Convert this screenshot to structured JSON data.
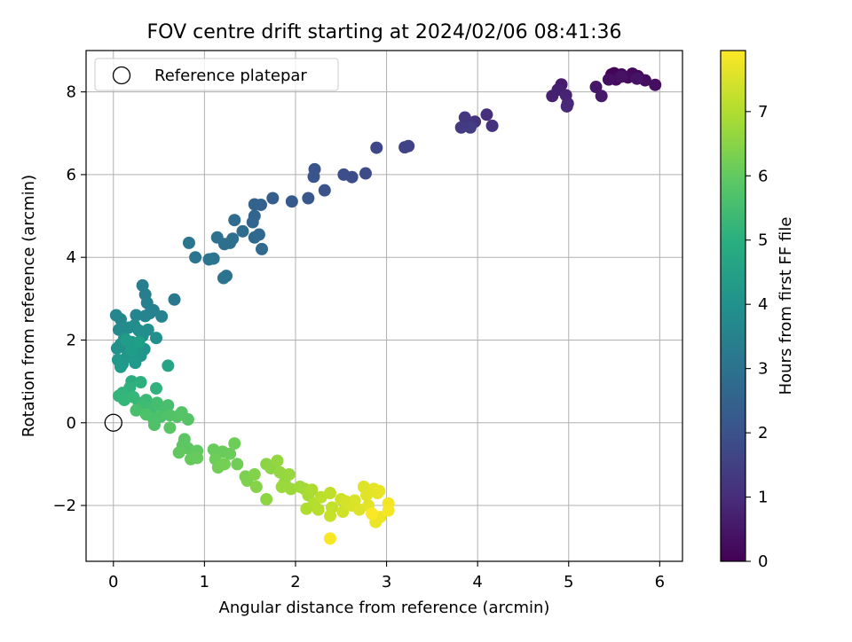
{
  "chart_data": {
    "type": "scatter",
    "title": "FOV centre drift starting at 2024/02/06 08:41:36",
    "xlabel": "Angular distance from reference (arcmin)",
    "ylabel": "Rotation from reference (arcmin)",
    "xlim": [
      -0.3,
      6.25
    ],
    "ylim": [
      -3.35,
      9.0
    ],
    "x_ticks": [
      0,
      1,
      2,
      3,
      4,
      5,
      6
    ],
    "y_ticks": [
      -2,
      0,
      2,
      4,
      6,
      8
    ],
    "x_tick_labels": [
      "0",
      "1",
      "2",
      "3",
      "4",
      "5",
      "6"
    ],
    "y_tick_labels": [
      "−2",
      "0",
      "2",
      "4",
      "6",
      "8"
    ],
    "grid": true,
    "legend": {
      "placement": "upper-left",
      "entries": [
        {
          "label": "Reference platepar",
          "marker": "open-circle"
        }
      ]
    },
    "reference_point": {
      "x": 0,
      "y": 0
    },
    "colorbar": {
      "label": "Hours from first FF file",
      "colormap": "viridis",
      "range": [
        0,
        7.95
      ],
      "ticks": [
        0,
        1,
        2,
        3,
        4,
        5,
        6,
        7
      ],
      "tick_labels": [
        "0",
        "1",
        "2",
        "3",
        "4",
        "5",
        "6",
        "7"
      ]
    },
    "points": [
      {
        "x": 5.47,
        "y": 8.42,
        "hours": 0.05
      },
      {
        "x": 5.5,
        "y": 8.45,
        "hours": 0.08
      },
      {
        "x": 5.58,
        "y": 8.42,
        "hours": 0.12
      },
      {
        "x": 5.7,
        "y": 8.44,
        "hours": 0.15
      },
      {
        "x": 5.76,
        "y": 8.38,
        "hours": 0.18
      },
      {
        "x": 5.65,
        "y": 8.35,
        "hours": 0.22
      },
      {
        "x": 5.52,
        "y": 8.3,
        "hours": 0.25
      },
      {
        "x": 5.84,
        "y": 8.28,
        "hours": 0.28
      },
      {
        "x": 5.95,
        "y": 8.17,
        "hours": 0.32
      },
      {
        "x": 5.44,
        "y": 8.3,
        "hours": 0.35
      },
      {
        "x": 5.58,
        "y": 8.37,
        "hours": 0.38
      },
      {
        "x": 5.75,
        "y": 8.32,
        "hours": 0.42
      },
      {
        "x": 5.3,
        "y": 8.12,
        "hours": 0.5
      },
      {
        "x": 5.36,
        "y": 7.9,
        "hours": 0.55
      },
      {
        "x": 4.92,
        "y": 8.18,
        "hours": 0.62
      },
      {
        "x": 4.88,
        "y": 8.05,
        "hours": 0.68
      },
      {
        "x": 4.82,
        "y": 7.9,
        "hours": 0.72
      },
      {
        "x": 4.97,
        "y": 7.92,
        "hours": 0.8
      },
      {
        "x": 4.99,
        "y": 7.72,
        "hours": 0.85
      },
      {
        "x": 4.98,
        "y": 7.65,
        "hours": 0.9
      },
      {
        "x": 4.1,
        "y": 7.45,
        "hours": 1.1
      },
      {
        "x": 4.16,
        "y": 7.18,
        "hours": 1.15
      },
      {
        "x": 3.97,
        "y": 7.28,
        "hours": 1.2
      },
      {
        "x": 3.86,
        "y": 7.38,
        "hours": 1.25
      },
      {
        "x": 3.88,
        "y": 7.22,
        "hours": 1.3
      },
      {
        "x": 3.82,
        "y": 7.14,
        "hours": 1.35
      },
      {
        "x": 3.92,
        "y": 7.14,
        "hours": 1.4
      },
      {
        "x": 3.24,
        "y": 6.69,
        "hours": 1.55
      },
      {
        "x": 3.2,
        "y": 6.66,
        "hours": 1.6
      },
      {
        "x": 2.89,
        "y": 6.65,
        "hours": 1.7
      },
      {
        "x": 2.77,
        "y": 6.03,
        "hours": 1.8
      },
      {
        "x": 2.62,
        "y": 5.94,
        "hours": 1.85
      },
      {
        "x": 2.53,
        "y": 6.0,
        "hours": 1.9
      },
      {
        "x": 2.32,
        "y": 5.62,
        "hours": 2.0
      },
      {
        "x": 2.21,
        "y": 6.13,
        "hours": 2.05
      },
      {
        "x": 2.2,
        "y": 5.95,
        "hours": 2.1
      },
      {
        "x": 2.14,
        "y": 5.43,
        "hours": 2.15
      },
      {
        "x": 1.96,
        "y": 5.35,
        "hours": 2.25
      },
      {
        "x": 1.75,
        "y": 5.43,
        "hours": 2.35
      },
      {
        "x": 1.62,
        "y": 5.27,
        "hours": 2.45
      },
      {
        "x": 1.55,
        "y": 5.28,
        "hours": 2.5
      },
      {
        "x": 1.55,
        "y": 5.0,
        "hours": 2.55
      },
      {
        "x": 1.53,
        "y": 4.85,
        "hours": 2.6
      },
      {
        "x": 1.6,
        "y": 4.55,
        "hours": 2.65
      },
      {
        "x": 1.55,
        "y": 4.48,
        "hours": 2.7
      },
      {
        "x": 1.63,
        "y": 4.2,
        "hours": 2.72
      },
      {
        "x": 1.42,
        "y": 4.63,
        "hours": 2.78
      },
      {
        "x": 1.33,
        "y": 4.9,
        "hours": 2.8
      },
      {
        "x": 1.31,
        "y": 4.45,
        "hours": 2.85
      },
      {
        "x": 1.28,
        "y": 4.35,
        "hours": 2.88
      },
      {
        "x": 1.22,
        "y": 4.32,
        "hours": 2.9
      },
      {
        "x": 1.14,
        "y": 4.48,
        "hours": 2.95
      },
      {
        "x": 1.24,
        "y": 3.55,
        "hours": 3.0
      },
      {
        "x": 1.21,
        "y": 3.5,
        "hours": 3.02
      },
      {
        "x": 1.1,
        "y": 3.97,
        "hours": 3.05
      },
      {
        "x": 1.05,
        "y": 3.95,
        "hours": 3.08
      },
      {
        "x": 0.9,
        "y": 4.0,
        "hours": 3.1
      },
      {
        "x": 0.83,
        "y": 4.35,
        "hours": 3.12
      },
      {
        "x": 0.67,
        "y": 2.98,
        "hours": 3.2
      },
      {
        "x": 0.32,
        "y": 3.32,
        "hours": 3.35
      },
      {
        "x": 0.35,
        "y": 3.1,
        "hours": 3.4
      },
      {
        "x": 0.37,
        "y": 2.9,
        "hours": 3.45
      },
      {
        "x": 0.44,
        "y": 2.72,
        "hours": 3.48
      },
      {
        "x": 0.4,
        "y": 2.65,
        "hours": 3.52
      },
      {
        "x": 0.53,
        "y": 2.57,
        "hours": 3.55
      },
      {
        "x": 0.35,
        "y": 2.58,
        "hours": 3.6
      },
      {
        "x": 0.25,
        "y": 2.6,
        "hours": 3.62
      },
      {
        "x": 0.03,
        "y": 2.6,
        "hours": 3.7
      },
      {
        "x": 0.08,
        "y": 2.5,
        "hours": 3.72
      },
      {
        "x": 0.06,
        "y": 2.25,
        "hours": 3.78
      },
      {
        "x": 0.17,
        "y": 2.3,
        "hours": 3.82
      },
      {
        "x": 0.23,
        "y": 2.35,
        "hours": 3.85
      },
      {
        "x": 0.28,
        "y": 2.23,
        "hours": 3.88
      },
      {
        "x": 0.38,
        "y": 2.25,
        "hours": 3.9
      },
      {
        "x": 0.32,
        "y": 2.1,
        "hours": 3.93
      },
      {
        "x": 0.47,
        "y": 2.05,
        "hours": 3.95
      },
      {
        "x": 0.12,
        "y": 2.05,
        "hours": 3.98
      },
      {
        "x": 0.08,
        "y": 1.9,
        "hours": 4.0
      },
      {
        "x": 0.04,
        "y": 1.8,
        "hours": 4.02
      },
      {
        "x": 0.14,
        "y": 1.8,
        "hours": 4.05
      },
      {
        "x": 0.2,
        "y": 1.95,
        "hours": 4.08
      },
      {
        "x": 0.26,
        "y": 1.88,
        "hours": 4.1
      },
      {
        "x": 0.34,
        "y": 1.78,
        "hours": 4.12
      },
      {
        "x": 0.3,
        "y": 1.62,
        "hours": 4.15
      },
      {
        "x": 0.22,
        "y": 1.55,
        "hours": 4.18
      },
      {
        "x": 0.15,
        "y": 1.6,
        "hours": 4.2
      },
      {
        "x": 0.05,
        "y": 1.52,
        "hours": 4.22
      },
      {
        "x": 0.1,
        "y": 1.42,
        "hours": 4.25
      },
      {
        "x": 0.08,
        "y": 1.35,
        "hours": 4.28
      },
      {
        "x": 0.24,
        "y": 1.45,
        "hours": 4.3
      },
      {
        "x": 0.14,
        "y": 2.0,
        "hours": 4.35
      },
      {
        "x": 0.2,
        "y": 1.75,
        "hours": 4.4
      },
      {
        "x": 0.28,
        "y": 1.95,
        "hours": 4.45
      },
      {
        "x": 0.6,
        "y": 1.38,
        "hours": 4.65
      },
      {
        "x": 0.2,
        "y": 1.0,
        "hours": 4.9
      },
      {
        "x": 0.3,
        "y": 0.98,
        "hours": 5.0
      },
      {
        "x": 0.18,
        "y": 0.85,
        "hours": 5.05
      },
      {
        "x": 0.47,
        "y": 0.83,
        "hours": 5.1
      },
      {
        "x": 0.1,
        "y": 0.72,
        "hours": 5.15
      },
      {
        "x": 0.06,
        "y": 0.65,
        "hours": 5.2
      },
      {
        "x": 0.12,
        "y": 0.55,
        "hours": 5.25
      },
      {
        "x": 0.22,
        "y": 0.62,
        "hours": 5.3
      },
      {
        "x": 0.28,
        "y": 0.48,
        "hours": 5.35
      },
      {
        "x": 0.36,
        "y": 0.55,
        "hours": 5.4
      },
      {
        "x": 0.32,
        "y": 0.4,
        "hours": 5.45
      },
      {
        "x": 0.42,
        "y": 0.35,
        "hours": 5.5
      },
      {
        "x": 0.48,
        "y": 0.48,
        "hours": 5.55
      },
      {
        "x": 0.55,
        "y": 0.3,
        "hours": 5.58
      },
      {
        "x": 0.6,
        "y": 0.42,
        "hours": 5.6
      },
      {
        "x": 0.25,
        "y": 0.3,
        "hours": 5.62
      },
      {
        "x": 0.44,
        "y": 0.1,
        "hours": 5.65
      },
      {
        "x": 0.52,
        "y": 0.15,
        "hours": 5.68
      },
      {
        "x": 0.36,
        "y": 0.2,
        "hours": 5.7
      },
      {
        "x": 0.45,
        "y": -0.05,
        "hours": 5.72
      },
      {
        "x": 0.62,
        "y": 0.18,
        "hours": 5.75
      },
      {
        "x": 0.7,
        "y": 0.15,
        "hours": 5.78
      },
      {
        "x": 0.75,
        "y": 0.25,
        "hours": 5.8
      },
      {
        "x": 0.82,
        "y": 0.08,
        "hours": 5.82
      },
      {
        "x": 0.62,
        "y": -0.12,
        "hours": 5.85
      },
      {
        "x": 0.78,
        "y": -0.4,
        "hours": 5.9
      },
      {
        "x": 0.76,
        "y": -0.55,
        "hours": 5.92
      },
      {
        "x": 0.82,
        "y": -0.62,
        "hours": 5.95
      },
      {
        "x": 0.92,
        "y": -0.68,
        "hours": 5.98
      },
      {
        "x": 0.72,
        "y": -0.72,
        "hours": 6.0
      },
      {
        "x": 0.85,
        "y": -0.88,
        "hours": 6.05
      },
      {
        "x": 0.92,
        "y": -0.85,
        "hours": 6.08
      },
      {
        "x": 1.1,
        "y": -0.65,
        "hours": 6.1
      },
      {
        "x": 1.2,
        "y": -0.7,
        "hours": 6.12
      },
      {
        "x": 1.28,
        "y": -0.75,
        "hours": 6.15
      },
      {
        "x": 1.33,
        "y": -0.5,
        "hours": 6.18
      },
      {
        "x": 1.12,
        "y": -0.88,
        "hours": 6.2
      },
      {
        "x": 1.36,
        "y": -1.0,
        "hours": 6.22
      },
      {
        "x": 1.15,
        "y": -1.08,
        "hours": 6.25
      },
      {
        "x": 1.22,
        "y": -1.0,
        "hours": 6.28
      },
      {
        "x": 1.45,
        "y": -1.3,
        "hours": 6.35
      },
      {
        "x": 1.47,
        "y": -1.4,
        "hours": 6.4
      },
      {
        "x": 1.55,
        "y": -1.25,
        "hours": 6.45
      },
      {
        "x": 1.57,
        "y": -1.55,
        "hours": 6.5
      },
      {
        "x": 1.68,
        "y": -1.0,
        "hours": 6.55
      },
      {
        "x": 1.73,
        "y": -1.1,
        "hours": 6.58
      },
      {
        "x": 1.68,
        "y": -1.85,
        "hours": 6.6
      },
      {
        "x": 1.8,
        "y": -0.92,
        "hours": 6.65
      },
      {
        "x": 1.83,
        "y": -1.2,
        "hours": 6.68
      },
      {
        "x": 1.88,
        "y": -1.45,
        "hours": 6.7
      },
      {
        "x": 1.93,
        "y": -1.25,
        "hours": 6.72
      },
      {
        "x": 1.85,
        "y": -1.55,
        "hours": 6.75
      },
      {
        "x": 1.95,
        "y": -1.6,
        "hours": 6.78
      },
      {
        "x": 2.05,
        "y": -1.55,
        "hours": 6.8
      },
      {
        "x": 2.1,
        "y": -1.6,
        "hours": 6.85
      },
      {
        "x": 2.14,
        "y": -1.75,
        "hours": 6.9
      },
      {
        "x": 2.18,
        "y": -1.62,
        "hours": 6.95
      },
      {
        "x": 2.12,
        "y": -2.08,
        "hours": 7.0
      },
      {
        "x": 2.2,
        "y": -1.95,
        "hours": 7.05
      },
      {
        "x": 2.25,
        "y": -2.1,
        "hours": 7.1
      },
      {
        "x": 2.28,
        "y": -1.8,
        "hours": 7.15
      },
      {
        "x": 2.38,
        "y": -1.7,
        "hours": 7.2
      },
      {
        "x": 2.4,
        "y": -2.05,
        "hours": 7.25
      },
      {
        "x": 2.38,
        "y": -2.25,
        "hours": 7.3
      },
      {
        "x": 2.5,
        "y": -1.85,
        "hours": 7.35
      },
      {
        "x": 2.52,
        "y": -2.15,
        "hours": 7.4
      },
      {
        "x": 2.55,
        "y": -1.9,
        "hours": 7.45
      },
      {
        "x": 2.62,
        "y": -2.0,
        "hours": 7.5
      },
      {
        "x": 2.65,
        "y": -1.88,
        "hours": 7.52
      },
      {
        "x": 2.7,
        "y": -2.1,
        "hours": 7.55
      },
      {
        "x": 2.75,
        "y": -1.55,
        "hours": 7.58
      },
      {
        "x": 2.78,
        "y": -1.75,
        "hours": 7.6
      },
      {
        "x": 2.8,
        "y": -2.0,
        "hours": 7.62
      },
      {
        "x": 2.86,
        "y": -1.6,
        "hours": 7.65
      },
      {
        "x": 2.9,
        "y": -1.7,
        "hours": 7.68
      },
      {
        "x": 2.92,
        "y": -1.65,
        "hours": 7.7
      },
      {
        "x": 2.88,
        "y": -2.4,
        "hours": 7.72
      },
      {
        "x": 2.93,
        "y": -2.28,
        "hours": 7.75
      },
      {
        "x": 3.02,
        "y": -1.95,
        "hours": 7.8
      },
      {
        "x": 3.02,
        "y": -2.12,
        "hours": 7.85
      },
      {
        "x": 2.38,
        "y": -2.8,
        "hours": 7.9
      },
      {
        "x": 2.84,
        "y": -2.2,
        "hours": 7.92
      }
    ]
  }
}
